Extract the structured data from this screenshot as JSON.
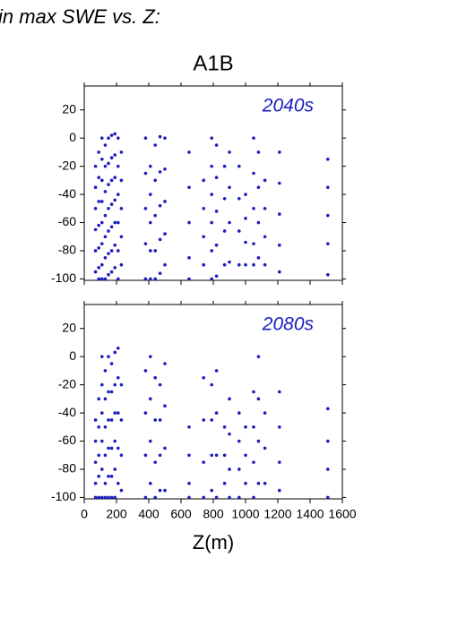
{
  "header": "in max SWE vs. Z:",
  "chart_data": [
    {
      "type": "scatter",
      "title": "A1B",
      "annotation": "2040s",
      "color": "#1c1cc0",
      "xlim": [
        0,
        1600
      ],
      "ylim": [
        -101,
        37
      ],
      "xticks": [
        0,
        200,
        400,
        600,
        800,
        1000,
        1200,
        1400,
        1600
      ],
      "yticks": [
        -100,
        -80,
        -60,
        -40,
        -20,
        0,
        20
      ],
      "x": [
        70,
        70,
        70,
        70,
        70,
        70,
        90,
        90,
        90,
        90,
        90,
        90,
        90,
        110,
        110,
        110,
        110,
        110,
        110,
        110,
        110,
        130,
        130,
        130,
        130,
        130,
        130,
        130,
        150,
        150,
        150,
        150,
        150,
        150,
        150,
        170,
        170,
        170,
        170,
        170,
        170,
        170,
        190,
        190,
        190,
        190,
        190,
        190,
        190,
        210,
        210,
        210,
        210,
        210,
        210,
        230,
        230,
        230,
        230,
        230,
        380,
        380,
        380,
        380,
        380,
        410,
        410,
        410,
        410,
        410,
        440,
        440,
        440,
        440,
        440,
        470,
        470,
        470,
        470,
        470,
        500,
        500,
        500,
        500,
        500,
        650,
        650,
        650,
        650,
        650,
        740,
        740,
        740,
        740,
        790,
        790,
        790,
        790,
        790,
        790,
        820,
        820,
        820,
        820,
        820,
        870,
        870,
        870,
        870,
        900,
        900,
        900,
        900,
        960,
        960,
        960,
        960,
        1000,
        1000,
        1000,
        1000,
        1050,
        1050,
        1050,
        1050,
        1050,
        1080,
        1080,
        1080,
        1080,
        1120,
        1120,
        1120,
        1120,
        1210,
        1210,
        1210,
        1210,
        1210,
        1510,
        1510,
        1510,
        1510,
        1510
      ],
      "y": [
        -20,
        -35,
        -50,
        -65,
        -80,
        -95,
        -10,
        -28,
        -45,
        -62,
        -78,
        -92,
        -100,
        0,
        -15,
        -30,
        -45,
        -60,
        -75,
        -90,
        -100,
        -5,
        -20,
        -38,
        -55,
        -70,
        -85,
        -100,
        0,
        -18,
        -33,
        -50,
        -66,
        -82,
        -97,
        2,
        -14,
        -30,
        -47,
        -63,
        -80,
        -95,
        3,
        -12,
        -28,
        -44,
        -60,
        -76,
        -92,
        0,
        -20,
        -40,
        -60,
        -80,
        -100,
        -10,
        -30,
        -50,
        -70,
        -90,
        0,
        -25,
        -50,
        -75,
        -100,
        -20,
        -40,
        -60,
        -80,
        -100,
        -5,
        -30,
        -55,
        -80,
        -100,
        1,
        -24,
        -48,
        -72,
        -96,
        0,
        -22,
        -45,
        -68,
        -90,
        -10,
        -35,
        -60,
        -85,
        -100,
        -30,
        -50,
        -70,
        -90,
        0,
        -20,
        -40,
        -60,
        -80,
        -100,
        -5,
        -28,
        -52,
        -76,
        -98,
        -20,
        -43,
        -66,
        -90,
        -10,
        -35,
        -60,
        -88,
        -20,
        -43,
        -66,
        -90,
        -40,
        -57,
        -74,
        -90,
        0,
        -25,
        -50,
        -75,
        -90,
        -10,
        -35,
        -60,
        -85,
        -30,
        -50,
        -70,
        -90,
        -10,
        -32,
        -54,
        -76,
        -95,
        -15,
        -35,
        -55,
        -75,
        -97
      ]
    },
    {
      "type": "scatter",
      "annotation": "2080s",
      "xlabel": "Z(m)",
      "color": "#1c1cc0",
      "xlim": [
        0,
        1600
      ],
      "ylim": [
        -101,
        37
      ],
      "xticks": [
        0,
        200,
        400,
        600,
        800,
        1000,
        1200,
        1400,
        1600
      ],
      "yticks": [
        -100,
        -80,
        -60,
        -40,
        -20,
        0,
        20
      ],
      "x": [
        70,
        70,
        70,
        70,
        70,
        90,
        90,
        90,
        90,
        90,
        110,
        110,
        110,
        110,
        110,
        110,
        130,
        130,
        130,
        130,
        130,
        130,
        150,
        150,
        150,
        150,
        150,
        150,
        170,
        170,
        170,
        170,
        170,
        170,
        190,
        190,
        190,
        190,
        190,
        190,
        210,
        210,
        210,
        210,
        210,
        230,
        230,
        230,
        230,
        380,
        380,
        380,
        380,
        410,
        410,
        410,
        410,
        440,
        440,
        440,
        440,
        470,
        470,
        470,
        470,
        500,
        500,
        500,
        500,
        650,
        650,
        650,
        650,
        740,
        740,
        740,
        740,
        790,
        790,
        790,
        790,
        820,
        820,
        820,
        820,
        870,
        870,
        870,
        900,
        900,
        900,
        900,
        960,
        960,
        960,
        960,
        1000,
        1000,
        1000,
        1050,
        1050,
        1050,
        1050,
        1080,
        1080,
        1080,
        1080,
        1120,
        1120,
        1120,
        1210,
        1210,
        1210,
        1210,
        1510,
        1510,
        1510,
        1510
      ],
      "y": [
        -45,
        -60,
        -75,
        -90,
        -100,
        -30,
        -50,
        -70,
        -85,
        -100,
        0,
        -20,
        -40,
        -60,
        -80,
        -100,
        -10,
        -30,
        -50,
        -70,
        -90,
        -100,
        0,
        -25,
        -45,
        -65,
        -85,
        -100,
        -5,
        -25,
        -45,
        -65,
        -85,
        -100,
        3,
        -20,
        -40,
        -60,
        -80,
        -100,
        6,
        -15,
        -40,
        -65,
        -90,
        -20,
        -45,
        -70,
        -95,
        -10,
        -40,
        -70,
        -100,
        0,
        -30,
        -60,
        -90,
        -15,
        -45,
        -75,
        -100,
        -20,
        -45,
        -70,
        -95,
        -5,
        -35,
        -65,
        -95,
        -50,
        -70,
        -90,
        -100,
        -15,
        -45,
        -75,
        -100,
        -20,
        -45,
        -70,
        -95,
        -10,
        -40,
        -70,
        -100,
        -50,
        -70,
        -90,
        -30,
        -55,
        -80,
        -100,
        -40,
        -60,
        -80,
        -100,
        -50,
        -70,
        -90,
        -25,
        -50,
        -75,
        -100,
        0,
        -30,
        -60,
        -90,
        -40,
        -65,
        -90,
        -25,
        -50,
        -75,
        -95,
        -37,
        -60,
        -80,
        -100
      ]
    }
  ]
}
